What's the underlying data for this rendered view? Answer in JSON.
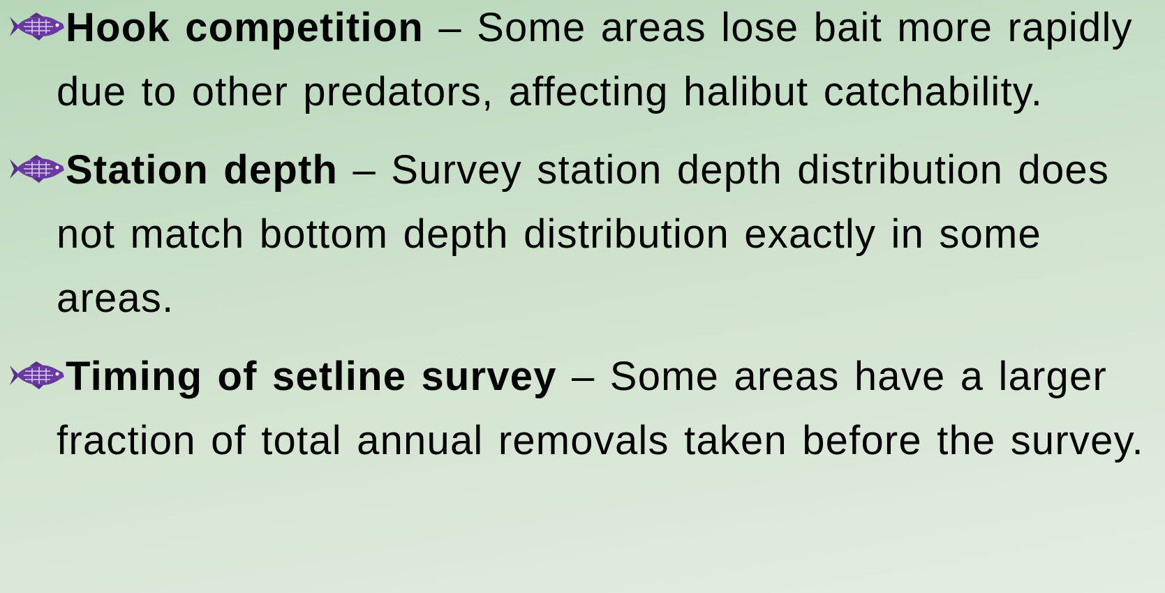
{
  "items": [
    {
      "term": "Hook competition",
      "text": "– Some areas lose bait more rapidly due to other predators, affecting halibut catchability."
    },
    {
      "term": "Station depth",
      "text": "– Survey station depth distribution does not match bottom depth distribution exactly in some areas."
    },
    {
      "term": "Timing of setline survey",
      "text": "– Some areas have a larger fraction of total annual removals taken before the survey."
    }
  ]
}
